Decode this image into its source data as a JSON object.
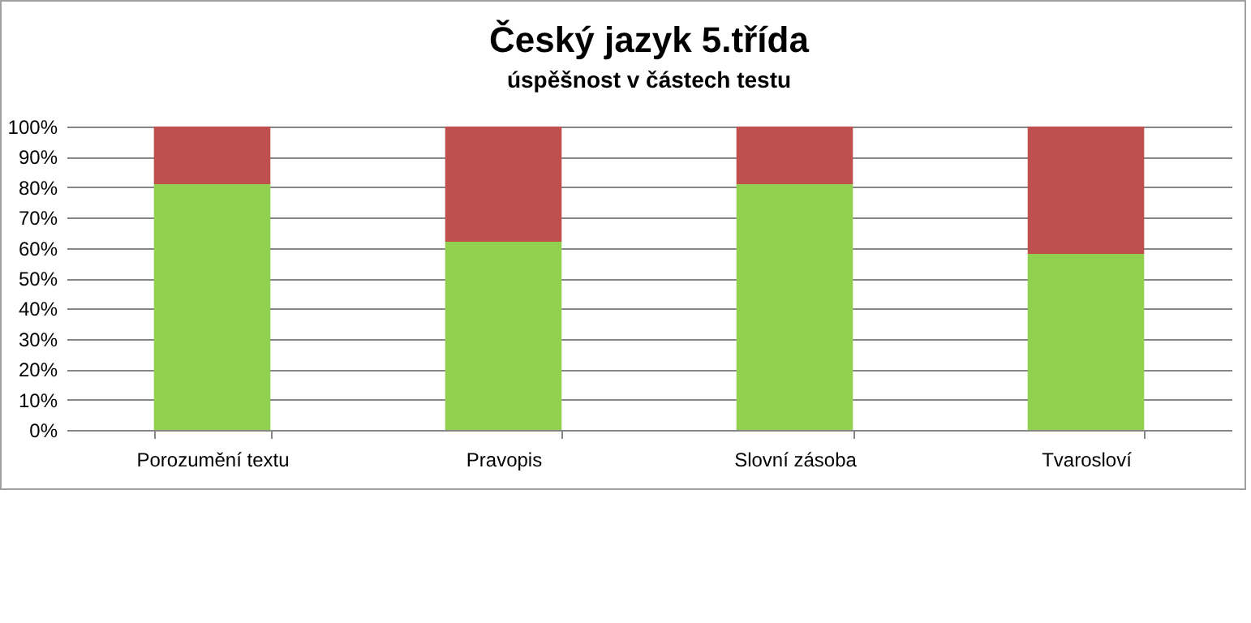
{
  "chart_data": {
    "type": "bar",
    "stacked": true,
    "title": "Český jazyk 5.třída",
    "subtitle": "úspěšnost v částech testu",
    "categories": [
      "Porozumění textu",
      "Pravopis",
      "Slovní zásoba",
      "Tvarosloví"
    ],
    "series": [
      {
        "color": "#92d050",
        "values": [
          81,
          62,
          81,
          58
        ]
      },
      {
        "color": "#c0504d",
        "values": [
          19,
          38,
          19,
          42
        ]
      }
    ],
    "ylim": [
      0,
      100
    ],
    "yticks": [
      {
        "value": 0,
        "label": "0%"
      },
      {
        "value": 10,
        "label": "10%"
      },
      {
        "value": 20,
        "label": "20%"
      },
      {
        "value": 30,
        "label": "30%"
      },
      {
        "value": 40,
        "label": "40%"
      },
      {
        "value": 50,
        "label": "50%"
      },
      {
        "value": 60,
        "label": "60%"
      },
      {
        "value": 70,
        "label": "70%"
      },
      {
        "value": 80,
        "label": "80%"
      },
      {
        "value": 90,
        "label": "90%"
      },
      {
        "value": 100,
        "label": "100%"
      }
    ],
    "grid": "y",
    "legend": false
  }
}
